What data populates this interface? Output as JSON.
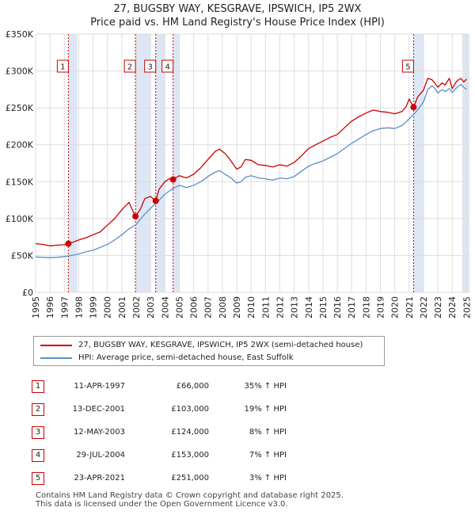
{
  "chart_data": {
    "type": "line",
    "title": "27, BUGSBY WAY, KESGRAVE, IPSWICH, IP5 2WX",
    "subtitle": "Price paid vs. HM Land Registry's House Price Index (HPI)",
    "xlim": [
      1995,
      2025.2
    ],
    "ylim": [
      0,
      350000
    ],
    "x_ticks": [
      "1995",
      "1996",
      "1997",
      "1998",
      "1999",
      "2000",
      "2001",
      "2002",
      "2003",
      "2004",
      "2005",
      "2006",
      "2007",
      "2008",
      "2009",
      "2010",
      "2011",
      "2012",
      "2013",
      "2014",
      "2015",
      "2016",
      "2017",
      "2018",
      "2019",
      "2020",
      "2021",
      "2022",
      "2023",
      "2024",
      "2025"
    ],
    "y_ticks": [
      {
        "value": 0,
        "label": "£0"
      },
      {
        "value": 50000,
        "label": "£50K"
      },
      {
        "value": 100000,
        "label": "£100K"
      },
      {
        "value": 150000,
        "label": "£150K"
      },
      {
        "value": 200000,
        "label": "£200K"
      },
      {
        "value": 250000,
        "label": "£250K"
      },
      {
        "value": 300000,
        "label": "£300K"
      },
      {
        "value": 350000,
        "label": "£350K"
      }
    ],
    "shaded_periods": [
      [
        1997.28,
        1997.9
      ],
      [
        2001.95,
        2003.0
      ],
      [
        2003.36,
        2004.0
      ],
      [
        2004.57,
        2005.0
      ],
      [
        2021.31,
        2022.0
      ],
      [
        2024.7,
        2025.2
      ]
    ],
    "series": [
      {
        "name": "27, BUGSBY WAY, KESGRAVE, IPSWICH, IP5 2WX (semi-detached house)",
        "color": "#cc0000",
        "x": [
          1995.0,
          1995.5,
          1996.0,
          1996.5,
          1997.0,
          1997.28,
          1997.6,
          1998.0,
          1998.5,
          1999.0,
          1999.5,
          2000.0,
          2000.5,
          2001.0,
          2001.5,
          2001.95,
          2002.3,
          2002.6,
          2003.0,
          2003.36,
          2003.6,
          2004.0,
          2004.3,
          2004.57,
          2005.0,
          2005.5,
          2006.0,
          2006.5,
          2007.0,
          2007.5,
          2007.8,
          2008.2,
          2008.6,
          2009.0,
          2009.3,
          2009.6,
          2010.0,
          2010.5,
          2011.0,
          2011.5,
          2012.0,
          2012.5,
          2013.0,
          2013.5,
          2014.0,
          2014.5,
          2015.0,
          2015.5,
          2016.0,
          2016.5,
          2017.0,
          2017.5,
          2018.0,
          2018.5,
          2019.0,
          2019.5,
          2020.0,
          2020.5,
          2020.8,
          2021.0,
          2021.31,
          2021.6,
          2022.0,
          2022.3,
          2022.6,
          2022.8,
          2023.0,
          2023.3,
          2023.5,
          2023.8,
          2024.0,
          2024.3,
          2024.6,
          2024.8,
          2025.0
        ],
        "values": [
          66000,
          65000,
          63000,
          64000,
          64500,
          66000,
          68000,
          71000,
          74000,
          78000,
          82000,
          91000,
          100000,
          112000,
          122000,
          103000,
          113000,
          127000,
          130000,
          124000,
          140000,
          150000,
          154000,
          153000,
          158000,
          155000,
          160000,
          169000,
          180000,
          191000,
          194000,
          188000,
          178000,
          167000,
          170000,
          180000,
          179000,
          173000,
          172000,
          170000,
          173000,
          171000,
          176000,
          185000,
          195000,
          200000,
          205000,
          210000,
          214000,
          223000,
          232000,
          238000,
          243000,
          247000,
          245000,
          244000,
          242000,
          245000,
          252000,
          262000,
          251000,
          265000,
          274000,
          290000,
          288000,
          283000,
          278000,
          284000,
          281000,
          290000,
          276000,
          286000,
          290000,
          285000,
          289000
        ]
      },
      {
        "name": "HPI: Average price, semi-detached house, East Suffolk",
        "color": "#5b8ec7",
        "x": [
          1995.0,
          1995.5,
          1996.0,
          1996.5,
          1997.0,
          1997.5,
          1998.0,
          1998.5,
          1999.0,
          1999.5,
          2000.0,
          2000.5,
          2001.0,
          2001.5,
          2002.0,
          2002.5,
          2003.0,
          2003.5,
          2004.0,
          2004.5,
          2005.0,
          2005.5,
          2006.0,
          2006.5,
          2007.0,
          2007.5,
          2007.8,
          2008.2,
          2008.6,
          2009.0,
          2009.3,
          2009.6,
          2010.0,
          2010.5,
          2011.0,
          2011.5,
          2012.0,
          2012.5,
          2013.0,
          2013.5,
          2014.0,
          2014.5,
          2015.0,
          2015.5,
          2016.0,
          2016.5,
          2017.0,
          2017.5,
          2018.0,
          2018.5,
          2019.0,
          2019.5,
          2020.0,
          2020.5,
          2021.0,
          2021.5,
          2022.0,
          2022.3,
          2022.6,
          2022.8,
          2023.0,
          2023.3,
          2023.5,
          2023.8,
          2024.0,
          2024.3,
          2024.6,
          2024.8,
          2025.0
        ],
        "values": [
          48000,
          47500,
          47000,
          47500,
          48500,
          50000,
          52000,
          55000,
          57000,
          61000,
          65000,
          71000,
          78000,
          86000,
          92000,
          104000,
          114000,
          123000,
          133000,
          140000,
          145000,
          142000,
          145000,
          150000,
          157000,
          163000,
          165000,
          160000,
          155000,
          148000,
          150000,
          156000,
          158000,
          155000,
          154000,
          152000,
          155000,
          154000,
          157000,
          164000,
          171000,
          175000,
          178000,
          183000,
          188000,
          195000,
          202000,
          208000,
          214000,
          219000,
          222000,
          223000,
          222000,
          226000,
          235000,
          245000,
          258000,
          275000,
          280000,
          276000,
          270000,
          275000,
          272000,
          276000,
          271000,
          277000,
          282000,
          278000,
          275000
        ]
      }
    ],
    "sales": [
      {
        "num": "1",
        "date": "11-APR-1997",
        "price": "£66,000",
        "pct": "35% ↑ HPI",
        "x": 1997.28,
        "value": 66000
      },
      {
        "num": "2",
        "date": "13-DEC-2001",
        "price": "£103,000",
        "pct": "19% ↑ HPI",
        "x": 2001.95,
        "value": 103000
      },
      {
        "num": "3",
        "date": "12-MAY-2003",
        "price": "£124,000",
        "pct": "8% ↑ HPI",
        "x": 2003.36,
        "value": 124000
      },
      {
        "num": "4",
        "date": "29-JUL-2004",
        "price": "£153,000",
        "pct": "7% ↑ HPI",
        "x": 2004.57,
        "value": 153000
      },
      {
        "num": "5",
        "date": "23-APR-2021",
        "price": "£251,000",
        "pct": "3% ↑ HPI",
        "x": 2021.31,
        "value": 251000
      }
    ]
  },
  "legend": [
    {
      "label": "27, BUGSBY WAY, KESGRAVE, IPSWICH, IP5 2WX (semi-detached house)",
      "color": "#cc0000"
    },
    {
      "label": "HPI: Average price, semi-detached house, East Suffolk",
      "color": "#5b8ec7"
    }
  ],
  "footer": {
    "line1": "Contains HM Land Registry data © Crown copyright and database right 2025.",
    "line2": "This data is licensed under the Open Government Licence v3.0."
  },
  "colors": {
    "grid": "#dddddd",
    "shade": "#dde6f5",
    "marker": "#cc0000",
    "hpi": "#5b8ec7",
    "price": "#cc0000"
  }
}
